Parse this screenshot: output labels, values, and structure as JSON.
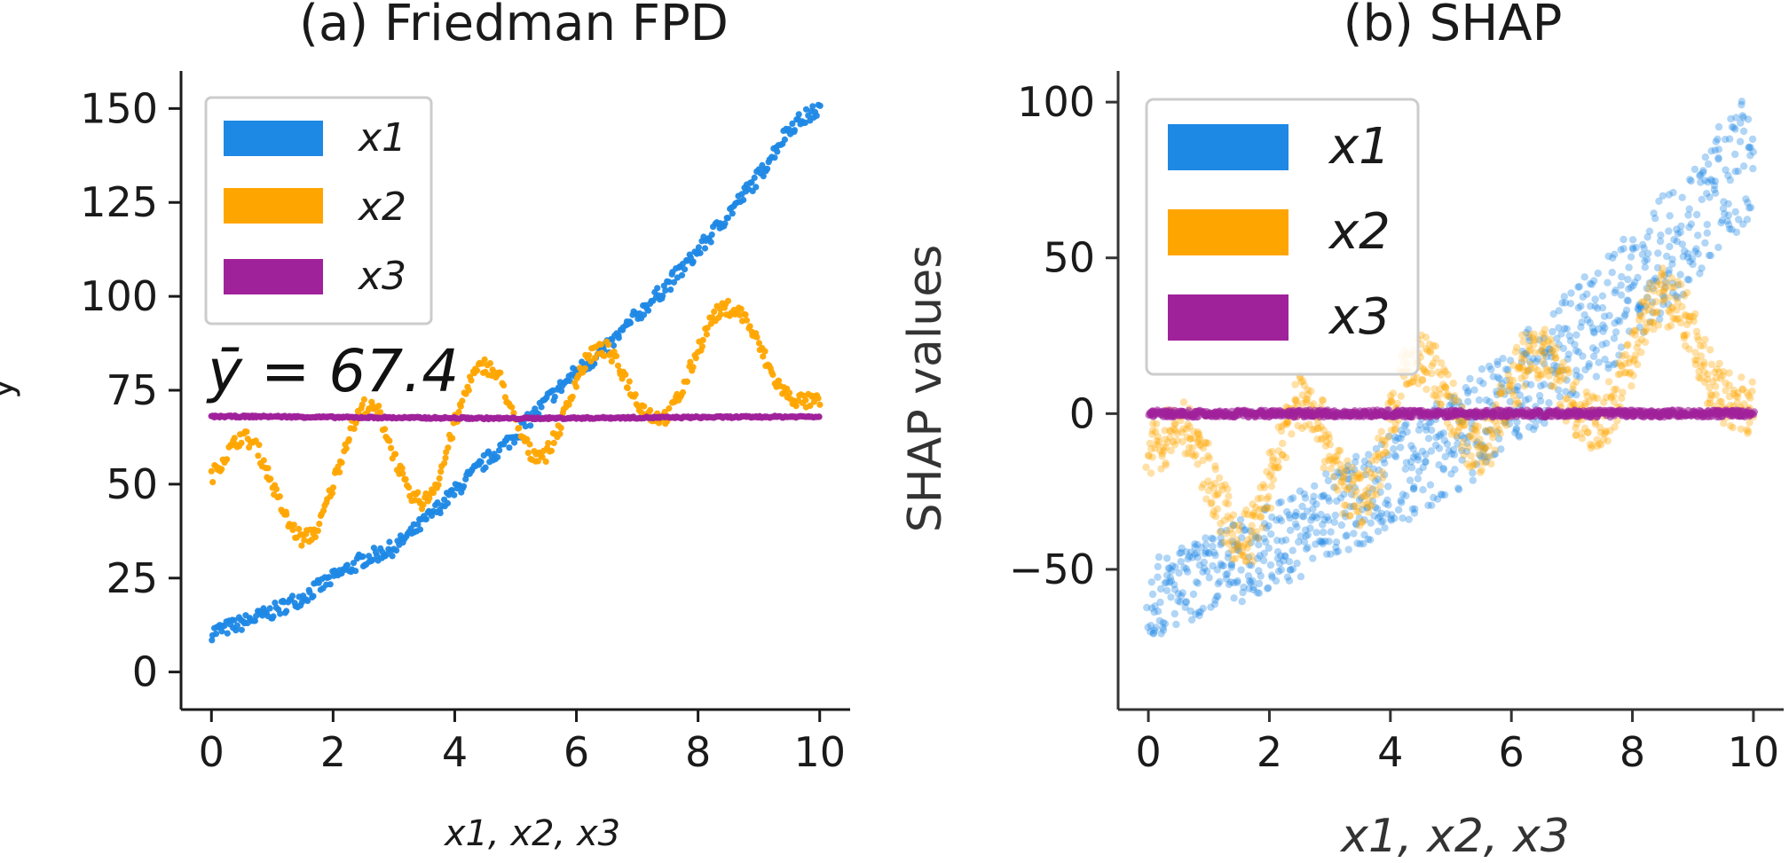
{
  "chart_data": [
    {
      "type": "scatter",
      "title": "(a) Friedman FPD",
      "xlabel": "x1, x2, x3",
      "ylabel": "y",
      "xlim": [
        -0.5,
        10.5
      ],
      "ylim": [
        -10,
        160
      ],
      "xticks": [
        "0",
        "2",
        "4",
        "6",
        "8",
        "10"
      ],
      "yticks": [
        "0",
        "25",
        "50",
        "75",
        "100",
        "125",
        "150"
      ],
      "annotation": "ȳ = 67.4",
      "legend": {
        "position": "upper-left",
        "entries": [
          "x1",
          "x2",
          "x3"
        ]
      },
      "series": [
        {
          "name": "x1",
          "color": "#1E88E5",
          "x": [
            0,
            0.5,
            1,
            1.5,
            2,
            2.5,
            3,
            3.5,
            4,
            4.5,
            5,
            5.5,
            6,
            6.5,
            7,
            7.5,
            8,
            8.5,
            9,
            9.5,
            10
          ],
          "values": [
            10.5,
            13,
            16,
            20,
            25,
            30,
            33,
            40,
            48,
            56,
            63,
            72,
            80,
            86,
            95,
            103,
            112,
            122,
            132,
            145,
            150
          ]
        },
        {
          "name": "x2",
          "color": "#FFA500",
          "x": [
            0,
            0.25,
            0.5,
            0.75,
            1,
            1.25,
            1.5,
            1.75,
            2,
            2.25,
            2.5,
            2.75,
            3,
            3.25,
            3.5,
            3.75,
            4,
            4.25,
            4.5,
            4.75,
            5,
            5.25,
            5.5,
            5.75,
            6,
            6.25,
            6.5,
            6.75,
            7,
            7.25,
            7.5,
            7.75,
            8,
            8.25,
            8.5,
            8.75,
            9,
            9.25,
            9.5,
            9.75,
            10
          ],
          "values": [
            52,
            58,
            63,
            60,
            50,
            40,
            35,
            38,
            50,
            63,
            71,
            69,
            58,
            47,
            45,
            52,
            66,
            78,
            82,
            78,
            66,
            58,
            58,
            66,
            78,
            85,
            86,
            80,
            72,
            68,
            68,
            75,
            86,
            95,
            97,
            95,
            87,
            78,
            73,
            72,
            72
          ]
        },
        {
          "name": "x3",
          "color": "#A0229B",
          "x": [
            0,
            1,
            2,
            3,
            4,
            5,
            6,
            7,
            8,
            9,
            10
          ],
          "values": [
            68,
            68,
            67.8,
            67.7,
            67.6,
            67.5,
            67.6,
            67.7,
            67.8,
            67.9,
            68
          ]
        }
      ]
    },
    {
      "type": "scatter",
      "title": "(b) SHAP",
      "xlabel": "x1, x2, x3",
      "ylabel": "SHAP values",
      "xlim": [
        -0.5,
        10.5
      ],
      "ylim": [
        -95,
        110
      ],
      "xticks": [
        "0",
        "2",
        "4",
        "6",
        "8",
        "10"
      ],
      "yticks": [
        "−50",
        "0",
        "50",
        "100"
      ],
      "legend": {
        "position": "upper-left",
        "entries": [
          "x1",
          "x2",
          "x3"
        ]
      },
      "series": [
        {
          "name": "x1",
          "color": "#1E88E5",
          "x": [
            0,
            1,
            2,
            3,
            4,
            5,
            6,
            7,
            8,
            9,
            10
          ],
          "values": [
            -60,
            -52,
            -43,
            -33,
            -22,
            -10,
            5,
            22,
            40,
            62,
            85
          ]
        },
        {
          "name": "x2",
          "color": "#FFA500",
          "x": [
            0,
            0.25,
            0.5,
            0.75,
            1,
            1.25,
            1.5,
            1.75,
            2,
            2.25,
            2.5,
            2.75,
            3,
            3.25,
            3.5,
            3.75,
            4,
            4.25,
            4.5,
            4.75,
            5,
            5.25,
            5.5,
            5.75,
            6,
            6.25,
            6.5,
            6.75,
            7,
            7.25,
            7.5,
            7.75,
            8,
            8.25,
            8.5,
            8.75,
            9,
            9.25,
            9.5,
            9.75,
            10
          ],
          "values": [
            -15,
            -8,
            -3,
            -8,
            -20,
            -32,
            -42,
            -38,
            -22,
            -5,
            5,
            2,
            -12,
            -24,
            -28,
            -20,
            -2,
            12,
            18,
            13,
            2,
            -10,
            -12,
            -4,
            8,
            18,
            20,
            14,
            4,
            -2,
            -3,
            6,
            20,
            32,
            38,
            35,
            25,
            12,
            5,
            3,
            2
          ]
        },
        {
          "name": "x3",
          "color": "#A0229B",
          "x": [
            0,
            1,
            2,
            3,
            4,
            5,
            6,
            7,
            8,
            9,
            10
          ],
          "values": [
            0,
            0,
            0,
            0,
            0,
            0,
            0,
            0,
            0,
            0,
            0
          ]
        }
      ]
    }
  ]
}
